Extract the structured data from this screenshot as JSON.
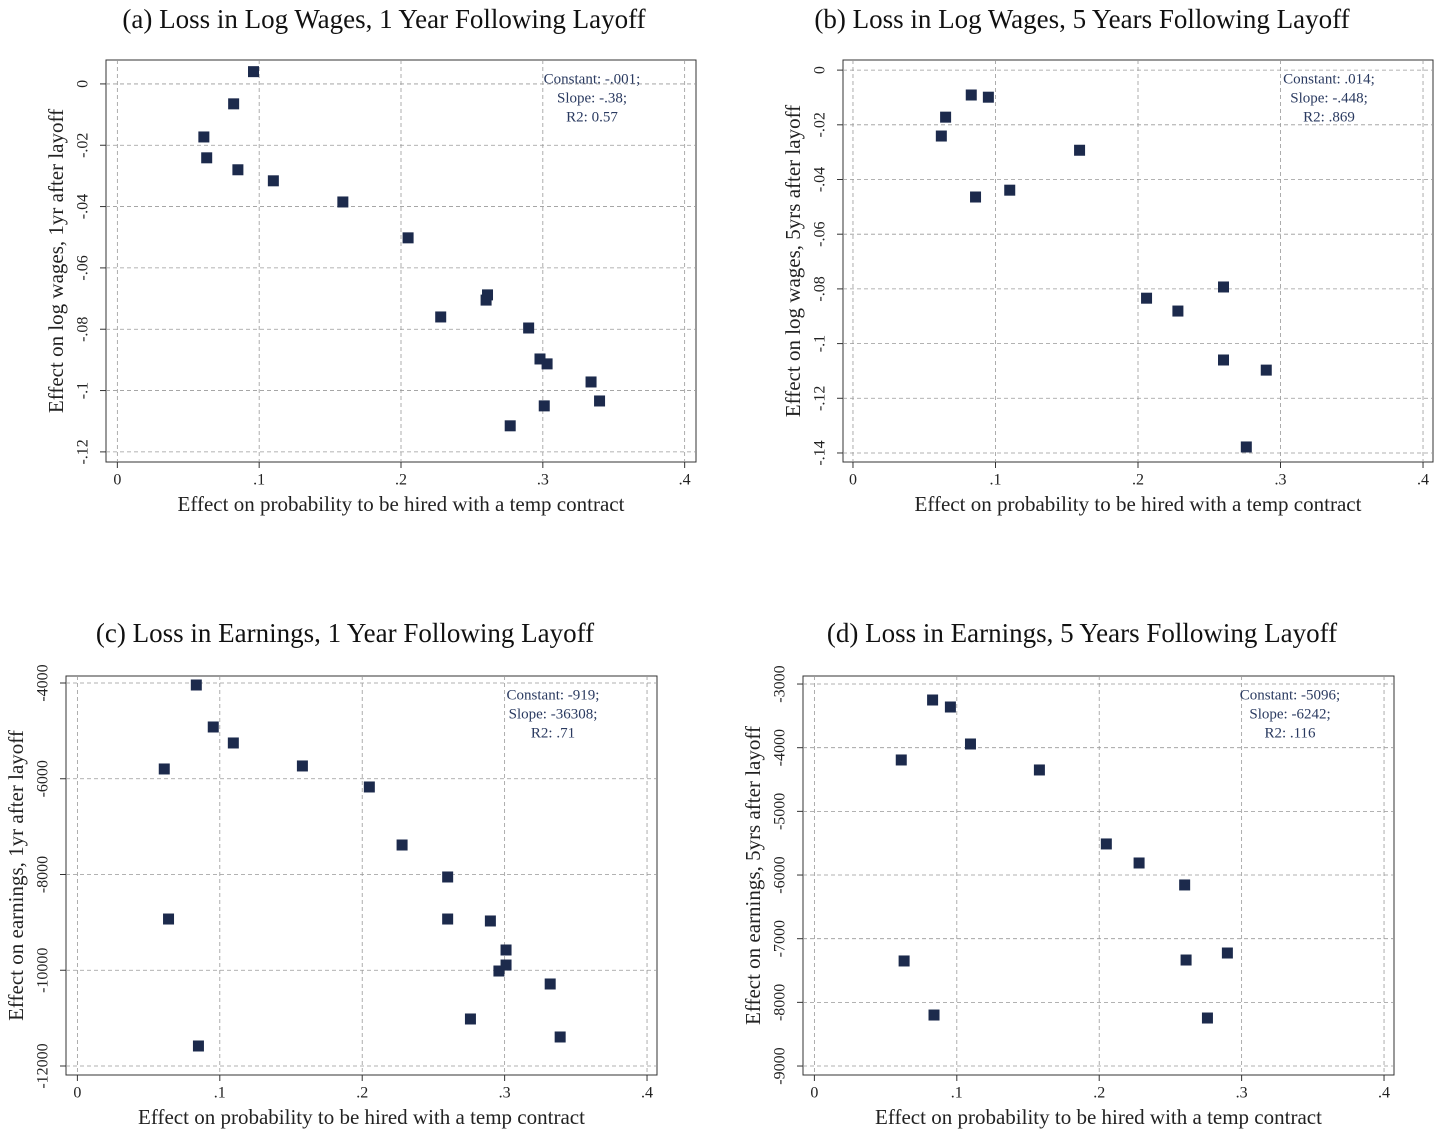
{
  "chart_data": [
    {
      "type": "scatter",
      "title": "(a) Loss in Log Wages, 1 Year Following Layoff",
      "xlabel": "Effect on probability to be hired with a temp contract",
      "ylabel": "Effect on log wages, 1yr after layoff",
      "annotation": [
        "Constant: -.001;",
        "Slope: -.38;",
        "R2: 0.57"
      ],
      "color": "#1c2a4c",
      "grid": true,
      "xlim": [
        -0.008,
        0.408
      ],
      "ylim": [
        -0.1233,
        0.0078
      ],
      "xticks": [
        0,
        {
          "value": 0.1,
          "label": ".1"
        },
        {
          "value": 0.2,
          "label": ".2"
        },
        {
          "value": 0.3,
          "label": ".3"
        },
        {
          "value": 0.4,
          "label": ".4"
        }
      ],
      "yticks": [
        0,
        {
          "value": -0.02,
          "label": "-.02"
        },
        {
          "value": -0.04,
          "label": "-.04"
        },
        {
          "value": -0.06,
          "label": "-.06"
        },
        {
          "value": -0.08,
          "label": "-.08"
        },
        {
          "value": -0.1,
          "label": "-.1"
        },
        {
          "value": -0.12,
          "label": "-.12"
        }
      ],
      "x": [
        0.096,
        0.082,
        0.061,
        0.063,
        0.085,
        0.11,
        0.159,
        0.205,
        0.228,
        0.261,
        0.26,
        0.29,
        0.298,
        0.303,
        0.334,
        0.301,
        0.34,
        0.277
      ],
      "values": [
        0.004,
        -0.0065,
        -0.0173,
        -0.0241,
        -0.028,
        -0.0316,
        -0.0385,
        -0.0502,
        -0.076,
        -0.0688,
        -0.0705,
        -0.0796,
        -0.0897,
        -0.0913,
        -0.0972,
        -0.105,
        -0.1034,
        -0.1115
      ]
    },
    {
      "type": "scatter",
      "title": "(b) Loss in Log Wages, 5 Years Following Layoff",
      "xlabel": "Effect on probability to be hired with a temp contract",
      "ylabel": "Effect on log wages, 5yrs after layoff",
      "annotation": [
        "Constant: .014;",
        "Slope: -.448;",
        "R2: .869"
      ],
      "color": "#1c2a4c",
      "grid": true,
      "xlim": [
        -0.007,
        0.407
      ],
      "ylim": [
        -0.1433,
        0.0037
      ],
      "xticks": [
        0,
        {
          "value": 0.1,
          "label": ".1"
        },
        {
          "value": 0.2,
          "label": ".2"
        },
        {
          "value": 0.3,
          "label": ".3"
        },
        {
          "value": 0.4,
          "label": ".4"
        }
      ],
      "yticks": [
        0,
        {
          "value": -0.02,
          "label": "-.02"
        },
        {
          "value": -0.04,
          "label": "-.04"
        },
        {
          "value": -0.06,
          "label": "-.06"
        },
        {
          "value": -0.08,
          "label": "-.08"
        },
        {
          "value": -0.1,
          "label": "-.1"
        },
        {
          "value": -0.12,
          "label": "-.12"
        },
        {
          "value": -0.14,
          "label": "-.14"
        }
      ],
      "x": [
        0.083,
        0.095,
        0.065,
        0.062,
        0.159,
        0.086,
        0.11,
        0.206,
        0.228,
        0.26,
        0.26,
        0.29,
        0.276
      ],
      "values": [
        -0.0091,
        -0.0099,
        -0.0172,
        -0.0241,
        -0.0293,
        -0.0464,
        -0.0439,
        -0.0834,
        -0.0881,
        -0.0793,
        -0.106,
        -0.1097,
        -0.1378
      ]
    },
    {
      "type": "scatter",
      "title": "(c) Loss in Earnings, 1 Year Following Layoff",
      "xlabel": "Effect on probability to be hired with a temp contract",
      "ylabel": "Effect on earnings, 1yr after layoff",
      "annotation": [
        "Constant: -919;",
        "Slope: -36308;",
        "R2: .71"
      ],
      "color": "#1c2a4c",
      "grid": true,
      "xlim": [
        -0.008,
        0.407
      ],
      "ylim": [
        -12188,
        -3854
      ],
      "xticks": [
        0,
        {
          "value": 0.1,
          "label": ".1"
        },
        {
          "value": 0.2,
          "label": ".2"
        },
        {
          "value": 0.3,
          "label": ".3"
        },
        {
          "value": 0.4,
          "label": ".4"
        }
      ],
      "yticks": [
        -4000,
        -6000,
        -8000,
        -10000,
        -12000
      ],
      "x": [
        0.0835,
        0.0954,
        0.1095,
        0.061,
        0.158,
        0.205,
        0.228,
        0.26,
        0.064,
        0.26,
        0.29,
        0.301,
        0.301,
        0.296,
        0.332,
        0.276,
        0.339,
        0.085
      ],
      "values": [
        -4042,
        -4919,
        -5253,
        -5796,
        -5733,
        -6172,
        -7384,
        -8052,
        -8930,
        -8930,
        -8971,
        -9577,
        -9891,
        -10016,
        -10287,
        -11018,
        -11394,
        -11582
      ]
    },
    {
      "type": "scatter",
      "title": "(d) Loss in Earnings, 5 Years Following Layoff",
      "xlabel": "Effect on probability to be hired with a temp contract",
      "ylabel": "Effect on earnings, 5yrs after layoff",
      "annotation": [
        "Constant: -5096;",
        "Slope: -6242;",
        "R2: .116"
      ],
      "color": "#1c2a4c",
      "grid": true,
      "xlim": [
        -0.008,
        0.407
      ],
      "ylim": [
        -9141,
        -2874
      ],
      "xticks": [
        0,
        {
          "value": 0.1,
          "label": ".1"
        },
        {
          "value": 0.2,
          "label": ".2"
        },
        {
          "value": 0.3,
          "label": ".3"
        },
        {
          "value": 0.4,
          "label": ".4"
        }
      ],
      "yticks": [
        -3000,
        -4000,
        -5000,
        -6000,
        -7000,
        -8000,
        -9000
      ],
      "x": [
        0.083,
        0.0955,
        0.1096,
        0.061,
        0.158,
        0.205,
        0.228,
        0.26,
        0.063,
        0.261,
        0.29,
        0.084,
        0.276
      ],
      "values": [
        -3251,
        -3361,
        -3942,
        -4193,
        -4350,
        -5512,
        -5811,
        -6156,
        -7350,
        -7335,
        -7225,
        -8199,
        -8246
      ]
    }
  ]
}
